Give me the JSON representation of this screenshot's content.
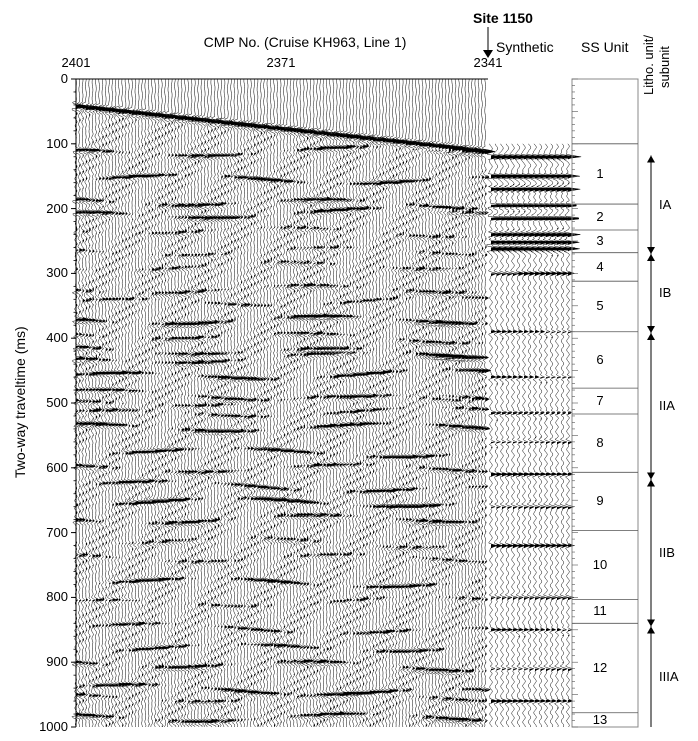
{
  "header": {
    "cmp_title": "CMP No. (Cruise KH963, Line 1)",
    "site": "Site 1150",
    "synthetic": "Synthetic",
    "ss_unit": "SS Unit",
    "litho_line1": "Litho. unit/",
    "litho_line2": "subunit"
  },
  "cmp_ticks": [
    "2401",
    "2371",
    "2341"
  ],
  "yaxis": {
    "label": "Two-way traveltime (ms)",
    "ticks": [
      "0",
      "100",
      "200",
      "300",
      "400",
      "500",
      "600",
      "700",
      "800",
      "900",
      "1000"
    ],
    "range": [
      0,
      1000
    ]
  },
  "ss_units": [
    {
      "label": "1",
      "top": 100,
      "bottom": 193
    },
    {
      "label": "2",
      "top": 193,
      "bottom": 233
    },
    {
      "label": "3",
      "top": 233,
      "bottom": 268
    },
    {
      "label": "4",
      "top": 268,
      "bottom": 312
    },
    {
      "label": "5",
      "top": 312,
      "bottom": 390
    },
    {
      "label": "6",
      "top": 390,
      "bottom": 477
    },
    {
      "label": "7",
      "top": 477,
      "bottom": 517
    },
    {
      "label": "8",
      "top": 517,
      "bottom": 607
    },
    {
      "label": "9",
      "top": 607,
      "bottom": 697
    },
    {
      "label": "10",
      "top": 697,
      "bottom": 803
    },
    {
      "label": "11",
      "top": 803,
      "bottom": 840
    },
    {
      "label": "12",
      "top": 840,
      "bottom": 978
    },
    {
      "label": "13",
      "top": 978,
      "bottom": 1000
    }
  ],
  "litho_units": [
    {
      "label": "IA",
      "top": 118,
      "bottom": 270
    },
    {
      "label": "IB",
      "top": 270,
      "bottom": 392
    },
    {
      "label": "IIA",
      "top": 392,
      "bottom": 618
    },
    {
      "label": "IIB",
      "top": 618,
      "bottom": 845
    },
    {
      "label": "IIIA",
      "top": 845,
      "bottom": 1000
    }
  ]
}
